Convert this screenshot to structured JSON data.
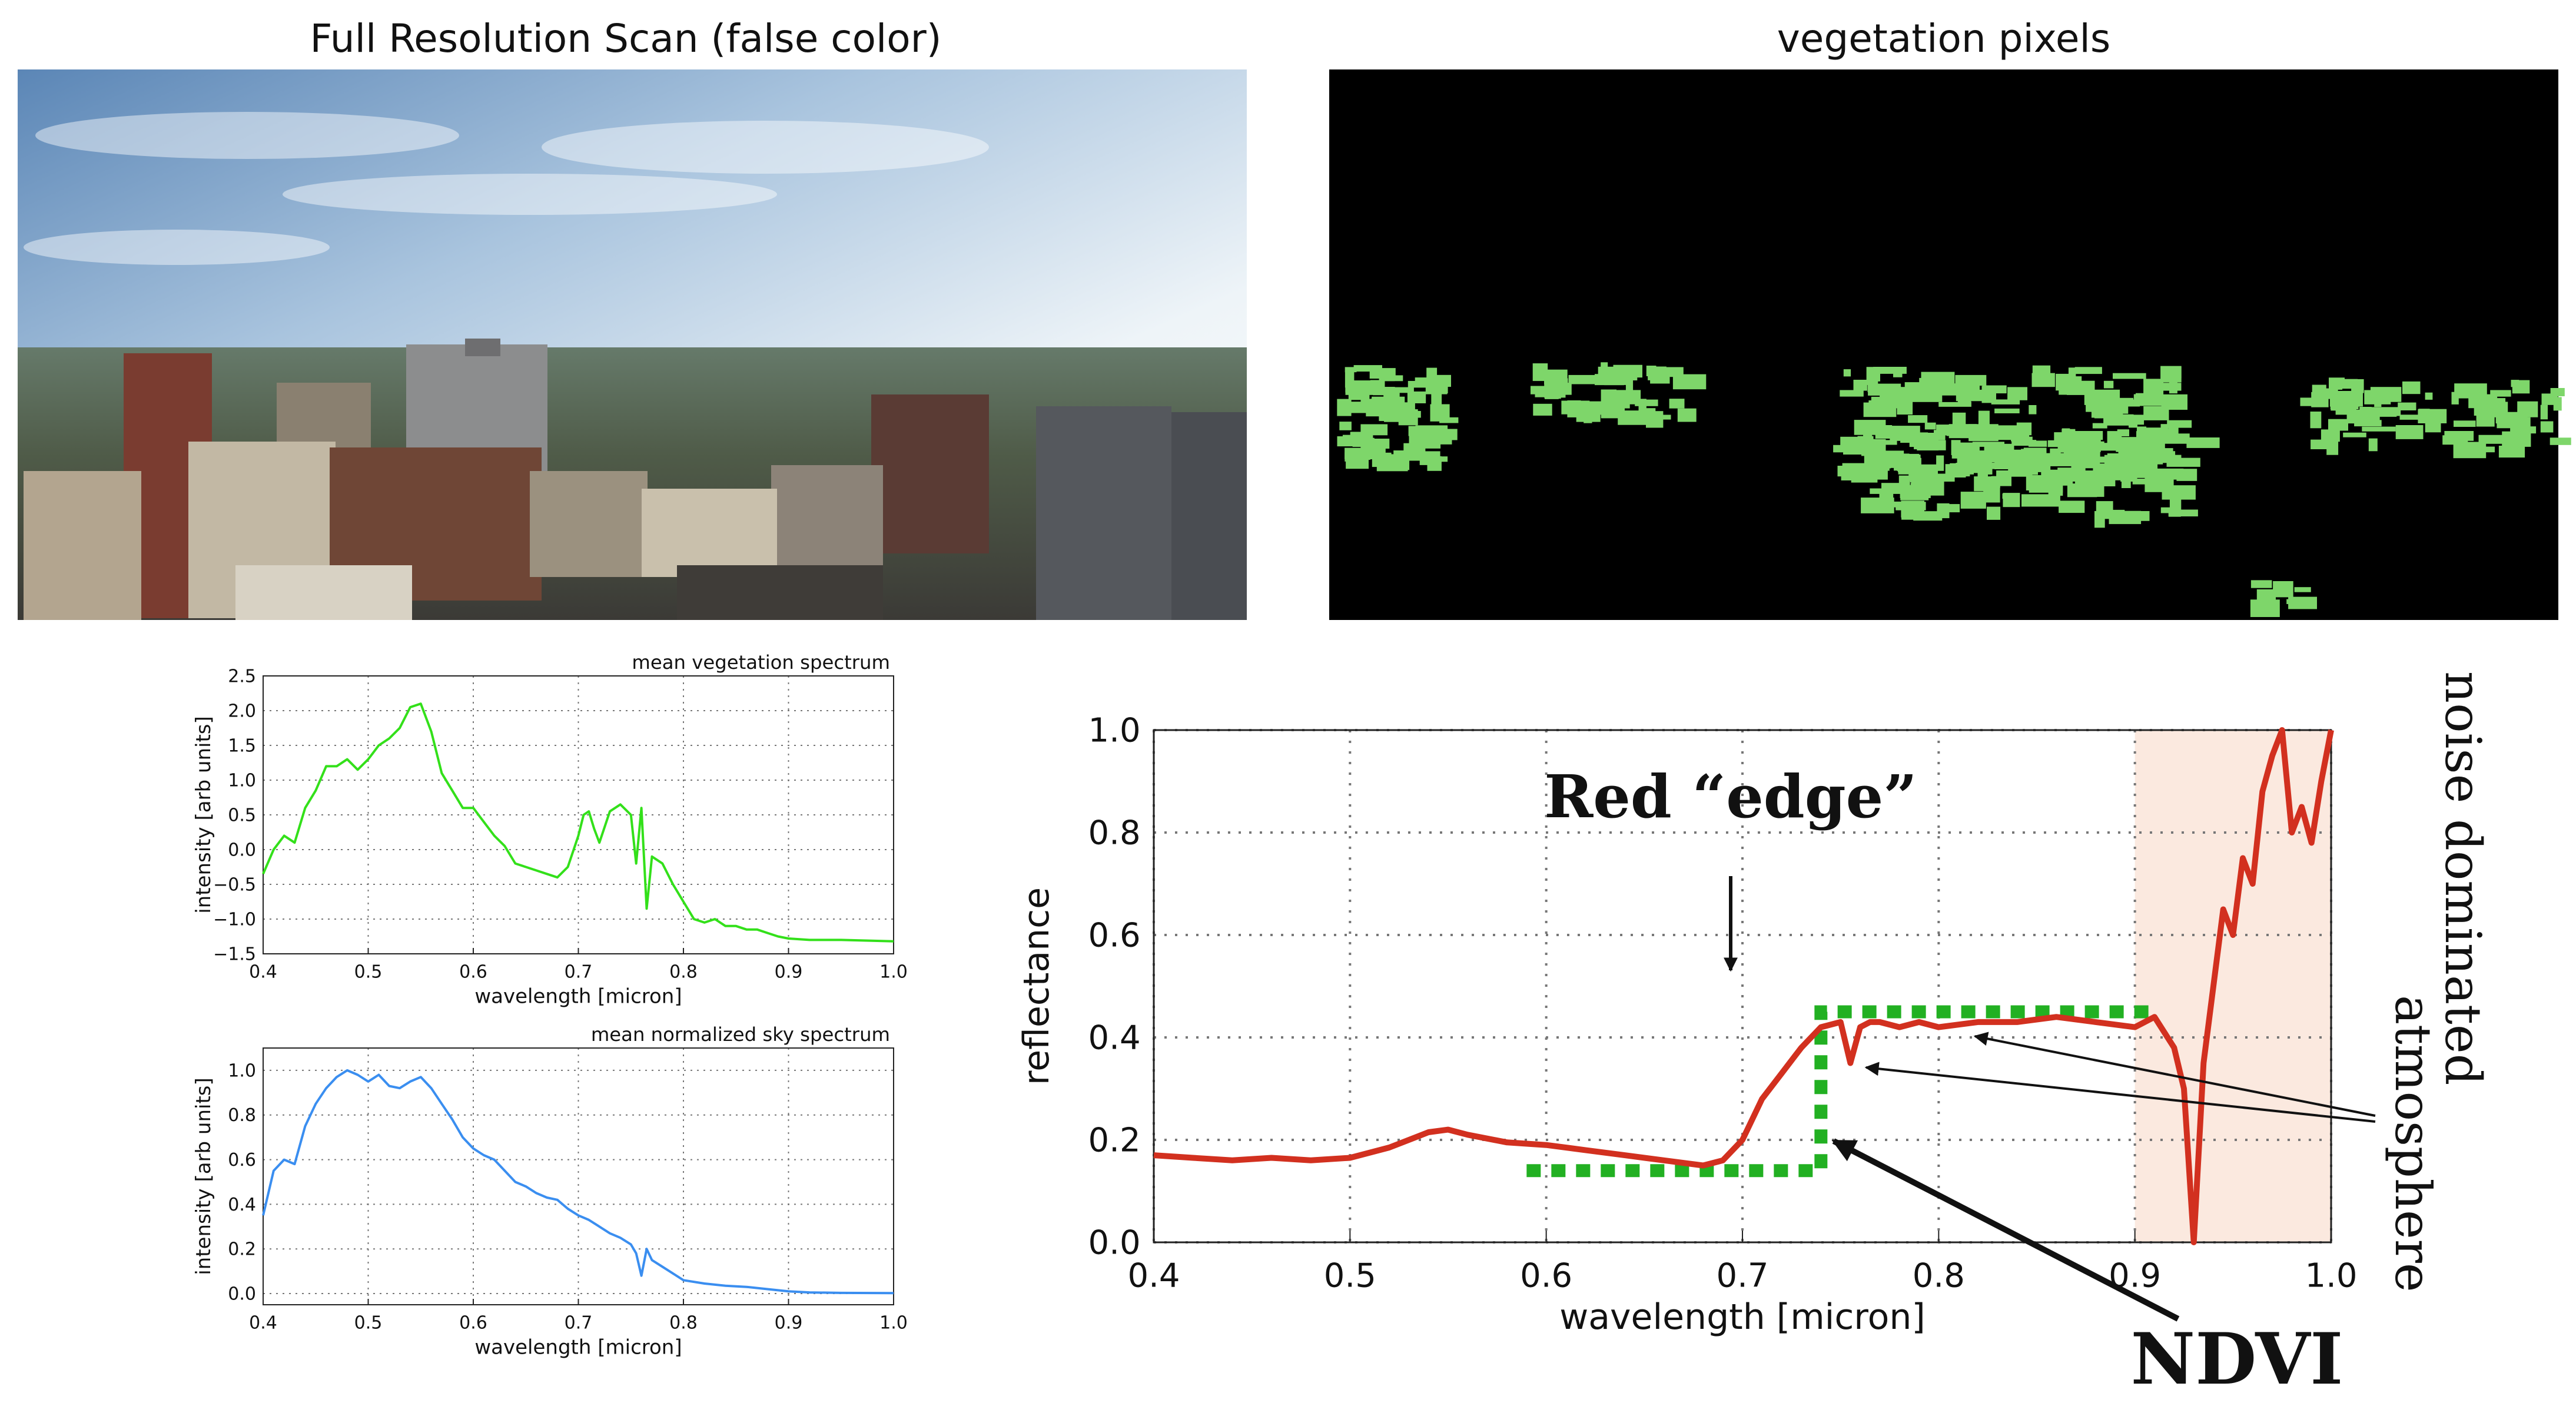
{
  "colors": {
    "veg_line": "#33e01a",
    "sky_line": "#3a8ef0",
    "refl_line": "#d2301f",
    "ndvi_dash": "#22b022",
    "veg_pixel": "#7ed66a",
    "noise_shade": "#fbe9df"
  },
  "panels": {
    "scan_title": "Full Resolution Scan (false color)",
    "veg_title": "vegetation pixels"
  },
  "annotations": {
    "red_edge": "Red “edge”",
    "noise_dominated": "noise dominated",
    "atmosphere": "atmosphere",
    "ndvi": "NDVI"
  },
  "chart_data": [
    {
      "id": "veg",
      "type": "line",
      "title": "mean vegetation spectrum",
      "xlabel": "wavelength [micron]",
      "ylabel": "intensity [arb units]",
      "xlim": [
        0.4,
        1.0
      ],
      "ylim": [
        -1.5,
        2.5
      ],
      "xticks": [
        0.4,
        0.5,
        0.6,
        0.7,
        0.8,
        0.9,
        1.0
      ],
      "xtick_labels": [
        "0.4",
        "0.5",
        "0.6",
        "0.7",
        "0.8",
        "0.9",
        "1.0"
      ],
      "yticks": [
        -1.5,
        -1.0,
        -0.5,
        0.0,
        0.5,
        1.0,
        1.5,
        2.0,
        2.5
      ],
      "ytick_labels": [
        "−1.5",
        "−1.0",
        "−0.5",
        "0.0",
        "0.5",
        "1.0",
        "1.5",
        "2.0",
        "2.5"
      ],
      "grid": true,
      "x": [
        0.4,
        0.41,
        0.42,
        0.43,
        0.44,
        0.45,
        0.46,
        0.47,
        0.48,
        0.49,
        0.5,
        0.51,
        0.52,
        0.53,
        0.54,
        0.55,
        0.56,
        0.57,
        0.58,
        0.59,
        0.6,
        0.61,
        0.62,
        0.63,
        0.64,
        0.65,
        0.66,
        0.67,
        0.68,
        0.69,
        0.7,
        0.705,
        0.71,
        0.715,
        0.72,
        0.73,
        0.74,
        0.75,
        0.755,
        0.76,
        0.765,
        0.77,
        0.78,
        0.79,
        0.8,
        0.81,
        0.82,
        0.83,
        0.84,
        0.85,
        0.86,
        0.87,
        0.88,
        0.89,
        0.9,
        0.92,
        0.95,
        1.0
      ],
      "y": [
        -0.35,
        0.0,
        0.2,
        0.1,
        0.6,
        0.85,
        1.2,
        1.2,
        1.3,
        1.15,
        1.3,
        1.5,
        1.6,
        1.75,
        2.05,
        2.1,
        1.7,
        1.1,
        0.85,
        0.6,
        0.6,
        0.4,
        0.2,
        0.05,
        -0.2,
        -0.25,
        -0.3,
        -0.35,
        -0.4,
        -0.25,
        0.2,
        0.5,
        0.55,
        0.3,
        0.1,
        0.55,
        0.65,
        0.5,
        -0.2,
        0.6,
        -0.85,
        -0.1,
        -0.2,
        -0.5,
        -0.75,
        -1.0,
        -1.05,
        -1.0,
        -1.1,
        -1.1,
        -1.15,
        -1.15,
        -1.2,
        -1.25,
        -1.28,
        -1.3,
        -1.3,
        -1.32
      ]
    },
    {
      "id": "sky",
      "type": "line",
      "title": "mean normalized sky spectrum",
      "xlabel": "wavelength [micron]",
      "ylabel": "intensity [arb units]",
      "xlim": [
        0.4,
        1.0
      ],
      "ylim": [
        -0.05,
        1.1
      ],
      "xticks": [
        0.4,
        0.5,
        0.6,
        0.7,
        0.8,
        0.9,
        1.0
      ],
      "xtick_labels": [
        "0.4",
        "0.5",
        "0.6",
        "0.7",
        "0.8",
        "0.9",
        "1.0"
      ],
      "yticks": [
        0.0,
        0.2,
        0.4,
        0.6,
        0.8,
        1.0
      ],
      "ytick_labels": [
        "0.0",
        "0.2",
        "0.4",
        "0.6",
        "0.8",
        "1.0"
      ],
      "grid": true,
      "x": [
        0.4,
        0.41,
        0.42,
        0.43,
        0.44,
        0.45,
        0.46,
        0.47,
        0.48,
        0.49,
        0.5,
        0.51,
        0.52,
        0.53,
        0.54,
        0.55,
        0.56,
        0.57,
        0.58,
        0.59,
        0.6,
        0.61,
        0.62,
        0.63,
        0.64,
        0.65,
        0.66,
        0.67,
        0.68,
        0.69,
        0.7,
        0.71,
        0.72,
        0.73,
        0.74,
        0.75,
        0.755,
        0.76,
        0.765,
        0.77,
        0.78,
        0.79,
        0.8,
        0.82,
        0.84,
        0.86,
        0.88,
        0.9,
        0.92,
        0.95,
        1.0
      ],
      "y": [
        0.35,
        0.55,
        0.6,
        0.58,
        0.75,
        0.85,
        0.92,
        0.97,
        1.0,
        0.98,
        0.95,
        0.98,
        0.93,
        0.92,
        0.95,
        0.97,
        0.92,
        0.85,
        0.78,
        0.7,
        0.65,
        0.62,
        0.6,
        0.55,
        0.5,
        0.48,
        0.45,
        0.43,
        0.42,
        0.38,
        0.35,
        0.33,
        0.3,
        0.27,
        0.25,
        0.22,
        0.18,
        0.08,
        0.2,
        0.15,
        0.12,
        0.09,
        0.06,
        0.045,
        0.035,
        0.03,
        0.02,
        0.01,
        0.005,
        0.003,
        0.002
      ]
    },
    {
      "id": "refl",
      "type": "line",
      "title": "",
      "xlabel": "wavelength [micron]",
      "ylabel": "reflectance",
      "xlim": [
        0.4,
        1.0
      ],
      "ylim": [
        0.0,
        1.0
      ],
      "xticks": [
        0.4,
        0.5,
        0.6,
        0.7,
        0.8,
        0.9,
        1.0
      ],
      "xtick_labels": [
        "0.4",
        "0.5",
        "0.6",
        "0.7",
        "0.8",
        "0.9",
        "1.0"
      ],
      "yticks": [
        0.0,
        0.2,
        0.4,
        0.6,
        0.8,
        1.0
      ],
      "ytick_labels": [
        "0.0",
        "0.2",
        "0.4",
        "0.6",
        "0.8",
        "1.0"
      ],
      "grid": true,
      "noise_region": [
        0.9,
        1.0
      ],
      "ndvi_step": {
        "x": [
          0.59,
          0.74,
          0.74,
          0.91
        ],
        "low": 0.14,
        "high": 0.45
      },
      "x": [
        0.4,
        0.42,
        0.44,
        0.46,
        0.48,
        0.5,
        0.52,
        0.54,
        0.55,
        0.56,
        0.58,
        0.6,
        0.62,
        0.64,
        0.66,
        0.68,
        0.69,
        0.7,
        0.71,
        0.72,
        0.73,
        0.74,
        0.75,
        0.755,
        0.76,
        0.765,
        0.77,
        0.78,
        0.79,
        0.8,
        0.82,
        0.84,
        0.86,
        0.88,
        0.9,
        0.91,
        0.92,
        0.925,
        0.93,
        0.935,
        0.94,
        0.945,
        0.95,
        0.955,
        0.96,
        0.965,
        0.97,
        0.975,
        0.98,
        0.985,
        0.99,
        0.995,
        1.0
      ],
      "y": [
        0.17,
        0.165,
        0.16,
        0.165,
        0.16,
        0.165,
        0.185,
        0.215,
        0.22,
        0.21,
        0.195,
        0.19,
        0.18,
        0.17,
        0.16,
        0.15,
        0.16,
        0.2,
        0.28,
        0.33,
        0.38,
        0.42,
        0.43,
        0.35,
        0.42,
        0.43,
        0.43,
        0.42,
        0.43,
        0.42,
        0.43,
        0.43,
        0.44,
        0.43,
        0.42,
        0.44,
        0.38,
        0.3,
        0.0,
        0.35,
        0.5,
        0.65,
        0.6,
        0.75,
        0.7,
        0.88,
        0.95,
        1.0,
        0.8,
        0.85,
        0.78,
        0.9,
        1.0
      ]
    }
  ]
}
